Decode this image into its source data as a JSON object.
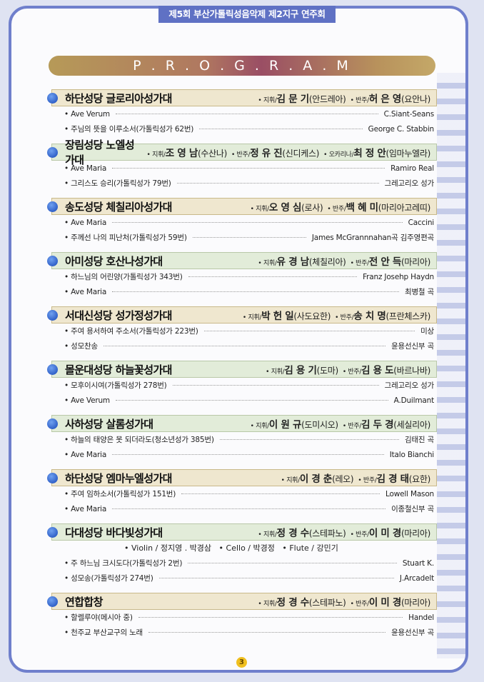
{
  "header_tab": "제5회 부산가톨릭성음악제 제2지구 연주회",
  "banner": "P . R . O . G . R . A . M",
  "page_number": "3",
  "colors": {
    "frame": "#6f7fcc",
    "header_beige": "#efe7cf",
    "header_green": "#e2ecd9",
    "bullet": "#1848b8"
  },
  "sections": [
    {
      "choir": "하단성당 글로리아성가대",
      "staff": [
        {
          "role": "• 지휘/",
          "name": "김 문 기",
          "saint": "(안드레아)"
        },
        {
          "role": "• 반주/",
          "name": "허 은 영",
          "saint": "(요안나)"
        }
      ],
      "items": [
        {
          "title": "• Ave Verum",
          "composer": "C.Siant-Seans"
        },
        {
          "title": "• 주님의 뜻을 이루소서(가톨릭성가 62번)",
          "composer": "George C. Stabbin"
        }
      ]
    },
    {
      "choir": "장림성당 노엘성가대",
      "staff": [
        {
          "role": "• 지휘/",
          "name": "조 영 남",
          "saint": "(수산나)"
        },
        {
          "role": "• 반주/",
          "name": "정 유 진",
          "saint": "(신디케스)"
        },
        {
          "role": "• 오카리나/",
          "name": "최 정 안",
          "saint": "(임마누엘라)"
        }
      ],
      "items": [
        {
          "title": "• Ave Maria",
          "composer": "Ramiro Real"
        },
        {
          "title": "• 그리스도 승리(가톨릭성가 79번)",
          "composer": "그레고리오 성가"
        }
      ]
    },
    {
      "choir": "송도성당 체칠리아성가대",
      "staff": [
        {
          "role": "• 지휘/",
          "name": "오 영 심",
          "saint": "(로사)"
        },
        {
          "role": "• 반주/",
          "name": "백 혜 미",
          "saint": "(마리아고레띠)"
        }
      ],
      "items": [
        {
          "title": "• Ave Maria",
          "composer": "Caccini"
        },
        {
          "title": "• 주께선 나의 피난처(가톨릭성가 59번)",
          "composer": "James McGrannnahan곡 김주영편곡"
        }
      ]
    },
    {
      "choir": "아미성당 호산나성가대",
      "staff": [
        {
          "role": "• 지휘/",
          "name": "유 경 남",
          "saint": "(체칠리아)"
        },
        {
          "role": "• 반주/",
          "name": "전 안 득",
          "saint": "(마리아)"
        }
      ],
      "items": [
        {
          "title": "• 하느님의 어린양(가톨릭성가 343번)",
          "composer": "Franz Josehp Haydn"
        },
        {
          "title": "• Ave Maria",
          "composer": "최병철 곡"
        }
      ]
    },
    {
      "choir": "서대신성당 성가정성가대",
      "staff": [
        {
          "role": "• 지휘/",
          "name": "박 헌 일",
          "saint": "(사도요한)"
        },
        {
          "role": "• 반주/",
          "name": "송 치 명",
          "saint": "(프란체스카)"
        }
      ],
      "items": [
        {
          "title": "• 주여 용서하여 주소서(가톨릭성가 223번)",
          "composer": "미상"
        },
        {
          "title": "• 성모찬송",
          "composer": "윤용선신부 곡"
        }
      ]
    },
    {
      "choir": "몰운대성당 하늘꽃성가대",
      "staff": [
        {
          "role": "• 지휘/",
          "name": "김 용 기",
          "saint": "(도마)"
        },
        {
          "role": "• 반주/",
          "name": "김 용 도",
          "saint": "(바르나바)"
        }
      ],
      "items": [
        {
          "title": "• 모후이시여(가톨릭성가 278번)",
          "composer": "그레고리오 성가"
        },
        {
          "title": "• Ave Verum",
          "composer": "A.Duilmant"
        }
      ]
    },
    {
      "choir": "사하성당 살롬성가대",
      "staff": [
        {
          "role": "• 지휘/",
          "name": "이 원 규",
          "saint": "(도미시오)"
        },
        {
          "role": "• 반주/",
          "name": "김 두 경",
          "saint": "(세실리아)"
        }
      ],
      "items": [
        {
          "title": "• 하늘의 태양은 못 되더라도(청소년성가 385번)",
          "composer": "김태진 곡"
        },
        {
          "title": "• Ave Maria",
          "composer": "Italo Bianchi"
        }
      ]
    },
    {
      "choir": "하단성당 엠마누엘성가대",
      "staff": [
        {
          "role": "• 지휘/",
          "name": "이 경 춘",
          "saint": "(레오)"
        },
        {
          "role": "• 반주/",
          "name": "김 경 태",
          "saint": "(요한)"
        }
      ],
      "items": [
        {
          "title": "• 주여 임하소서(가톨릭성가 151번)",
          "composer": "Lowell Mason"
        },
        {
          "title": "• Ave Maria",
          "composer": "이종철신부 곡"
        }
      ]
    },
    {
      "choir": "다대성당 바다빛성가대",
      "staff": [
        {
          "role": "• 지휘/",
          "name": "정 경 수",
          "saint": "(스테파노)"
        },
        {
          "role": "• 반주/",
          "name": "이 미 경",
          "saint": "(마리아)"
        }
      ],
      "instruments": "• Violin / 정지영 . 박경삼   • Cello / 박경정   • Flute / 강민기",
      "items": [
        {
          "title": "• 주 하느님 크시도다(가톨릭성가 2번)",
          "composer": "Stuart K."
        },
        {
          "title": "• 성모송(가톨릭성가 274번)",
          "composer": "J.Arcadelt"
        }
      ]
    },
    {
      "choir": "연합합창",
      "staff": [
        {
          "role": "• 지휘/",
          "name": "정 경 수",
          "saint": "(스테파노)"
        },
        {
          "role": "• 반주/",
          "name": "이 미 경",
          "saint": "(마리아)"
        }
      ],
      "items": [
        {
          "title": "• 할렐루야(메시아 중)",
          "composer": "Handel"
        },
        {
          "title": "• 천주교 부산교구의 노래",
          "composer": "윤용선신부 곡"
        }
      ]
    }
  ]
}
